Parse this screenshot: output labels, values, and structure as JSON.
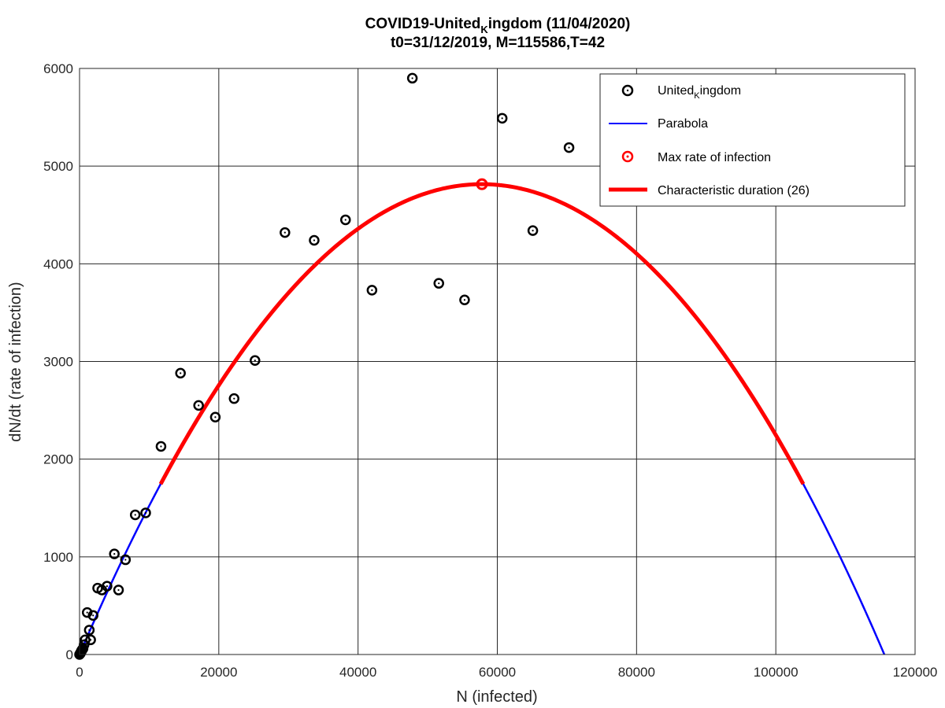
{
  "chart_data": {
    "type": "scatter",
    "title_prefix": "COVID19-United",
    "title_sub": "K",
    "title_suffix": "ingdom (11/04/2020)",
    "subtitle": "t0=31/12/2019, M=115586,T=42",
    "xlabel": "N (infected)",
    "ylabel": "dN/dt (rate of infection)",
    "xlim": [
      0,
      120000
    ],
    "ylim": [
      0,
      6000
    ],
    "x_ticks": [
      0,
      20000,
      40000,
      60000,
      80000,
      100000,
      120000
    ],
    "y_ticks": [
      0,
      1000,
      2000,
      3000,
      4000,
      5000,
      6000
    ],
    "x_tick_labels": [
      "0",
      "20000",
      "40000",
      "60000",
      "80000",
      "100000",
      "120000"
    ],
    "y_tick_labels": [
      "0",
      "1000",
      "2000",
      "3000",
      "4000",
      "5000",
      "6000"
    ],
    "grid": true,
    "legend_position": "top-right",
    "legend": [
      {
        "label_prefix": "United",
        "label_sub": "K",
        "label_suffix": "ingdom",
        "kind": "marker",
        "color": "#000000"
      },
      {
        "label": "Parabola",
        "kind": "line",
        "color": "#0000ff"
      },
      {
        "label": "Max rate of infection",
        "kind": "marker",
        "color": "#ff0000"
      },
      {
        "label": "Characteristic duration (26)",
        "kind": "thick-line",
        "color": "#ff0000"
      }
    ],
    "series": [
      {
        "name": "United_Kingdom",
        "type": "scatter",
        "color": "#000000",
        "x": [
          0,
          50,
          100,
          150,
          200,
          250,
          300,
          400,
          500,
          650,
          800,
          1100,
          1400,
          1600,
          1950,
          2600,
          3200,
          3950,
          5000,
          5600,
          6600,
          8000,
          9500,
          11700,
          14500,
          17100,
          19500,
          22200,
          25200,
          29500,
          33700,
          38200,
          42000,
          47800,
          51600,
          55300,
          60700,
          65100,
          70300
        ],
        "y": [
          0,
          5,
          10,
          15,
          25,
          30,
          40,
          50,
          60,
          100,
          150,
          430,
          250,
          150,
          400,
          680,
          660,
          700,
          1030,
          660,
          970,
          1430,
          1450,
          2130,
          2880,
          2550,
          2430,
          2620,
          3010,
          4320,
          4240,
          4450,
          3730,
          5900,
          3800,
          3630,
          5490,
          4340,
          5190
        ]
      },
      {
        "name": "Parabola",
        "type": "line",
        "color": "#0000ff",
        "x": [
          0,
          115586
        ],
        "curve": "y = 4*Ymax*x*(M-x)/M^2",
        "ymax": 4815
      },
      {
        "name": "Max rate of infection",
        "type": "scatter",
        "color": "#ff0000",
        "x": [
          57793
        ],
        "y": [
          4815
        ]
      },
      {
        "name": "Characteristic duration (26)",
        "type": "line",
        "color": "#ff0000",
        "x_range": [
          11650,
          103940
        ]
      }
    ]
  }
}
